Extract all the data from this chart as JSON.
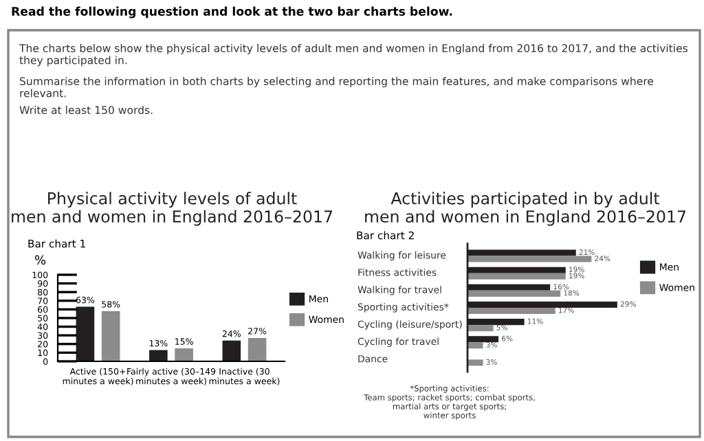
{
  "chart_data": [
    {
      "type": "other",
      "title": "Read the following question and look at the two bar charts below.",
      "annotations": [
        "The charts below show the physical activity levels of adult men and women in England from 2016 to 2017, and the activities they participated in.",
        "Summarise the information in both charts by selecting and reporting the main features, and make comparisons where relevant.",
        "Write at least 150 words."
      ]
    },
    {
      "type": "bar",
      "title": "Physical activity levels of adult men and women in England 2016–2017",
      "subtitle": "Bar chart 1",
      "ylabel": "%",
      "categories": [
        "Active (150+ minutes a week)",
        "Fairly active (30–149 minutes a week)",
        "Inactive (30 minutes a week)"
      ],
      "series": [
        {
          "name": "Men",
          "color": "#231f20",
          "values": [
            63,
            13,
            24
          ],
          "value_labels": [
            "63%",
            "13%",
            "24%"
          ]
        },
        {
          "name": "Women",
          "color": "#8c8c8c",
          "values": [
            58,
            15,
            27
          ],
          "value_labels": [
            "58%",
            "15%",
            "27%"
          ]
        }
      ],
      "ylim": [
        0,
        100
      ],
      "yticks": [
        0,
        10,
        20,
        30,
        40,
        50,
        60,
        70,
        80,
        90,
        100
      ],
      "legend": "right"
    },
    {
      "type": "bar",
      "orientation": "horizontal",
      "title": "Activities participated in by adult men and women in England 2016–2017",
      "subtitle": "Bar chart 2",
      "categories": [
        "Walking for leisure",
        "Fitness activities",
        "Walking for travel",
        "Sporting activities*",
        "Cycling (leisure/sport)",
        "Cycling for travel",
        "Dance"
      ],
      "series": [
        {
          "name": "Men",
          "color": "#231f20",
          "values": [
            21,
            19,
            16,
            29,
            11,
            6,
            null
          ],
          "value_labels": [
            "21%",
            "19%",
            "16%",
            "29%",
            "11%",
            "6%",
            null
          ]
        },
        {
          "name": "Women",
          "color": "#8c8c8c",
          "values": [
            24,
            19,
            18,
            17,
            5,
            3,
            3
          ],
          "value_labels": [
            "24%",
            "19%",
            "18%",
            "17%",
            "5%",
            "3%",
            "3%"
          ]
        }
      ],
      "annotations": [
        "*Sporting activities:\nTeam sports; racket sports; combat sports,\nmartial arts or target sports;\nwinter sports"
      ],
      "legend": "right"
    }
  ]
}
